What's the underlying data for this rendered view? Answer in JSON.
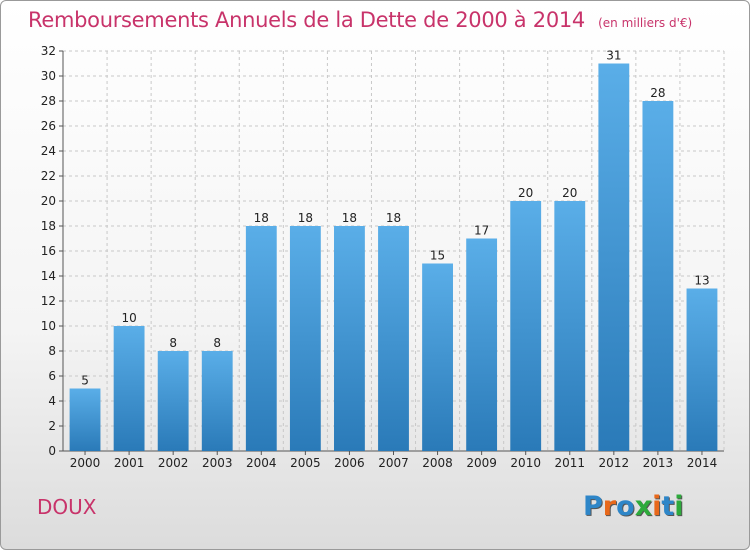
{
  "title": "Remboursements Annuels de la Dette de 2000 à 2014",
  "subtitle": "(en milliers d'€)",
  "commune": "DOUX",
  "logo": {
    "letters": [
      "P",
      "r",
      "o",
      "x",
      "i",
      "t",
      "i"
    ],
    "colors": [
      "#2e86c8",
      "#e8681a",
      "#2e86c8",
      "#2eaa3c",
      "#e8681a",
      "#2e86c8",
      "#2eaa3c"
    ]
  },
  "colors": {
    "bar_top": "#5aaee8",
    "bar_bottom": "#2a7ab8",
    "title": "#c8336a",
    "grid": "#c8c8c8"
  },
  "chart_data": {
    "type": "bar",
    "title": "Remboursements Annuels de la Dette de 2000 à 2014",
    "subtitle": "(en milliers d'€)",
    "categories": [
      "2000",
      "2001",
      "2002",
      "2003",
      "2004",
      "2005",
      "2006",
      "2007",
      "2008",
      "2009",
      "2010",
      "2011",
      "2012",
      "2013",
      "2014"
    ],
    "values": [
      5,
      10,
      8,
      8,
      18,
      18,
      18,
      18,
      15,
      17,
      20,
      20,
      31,
      28,
      13
    ],
    "ylim": [
      0,
      32
    ],
    "yticks": [
      0,
      2,
      4,
      6,
      8,
      10,
      12,
      14,
      16,
      18,
      20,
      22,
      24,
      26,
      28,
      30,
      32
    ],
    "grid": true,
    "xlabel": "",
    "ylabel": ""
  }
}
